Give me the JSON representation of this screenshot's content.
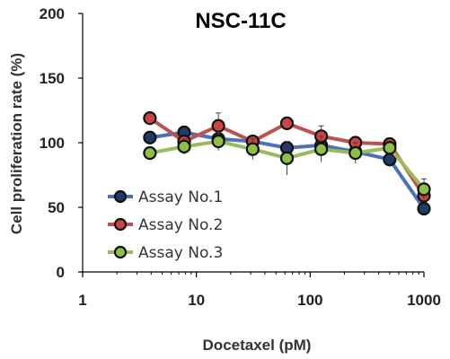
{
  "chart_data": {
    "type": "line",
    "title": "NSC-11C",
    "xlabel": "Docetaxel (pM)",
    "ylabel": "Cell proliferation rate (%)",
    "x_scale": "log",
    "xlim": [
      1,
      1000
    ],
    "ylim": [
      0,
      200
    ],
    "x_ticks": [
      "1",
      "10",
      "100",
      "1000"
    ],
    "y_ticks": [
      "0",
      "50",
      "100",
      "150",
      "200"
    ],
    "legend_position": "bottom-left",
    "grid": false,
    "x": [
      3.9,
      7.8,
      15.6,
      31.25,
      62.5,
      125,
      250,
      500,
      1000
    ],
    "series": [
      {
        "name": "Assay No.1",
        "color": "#4a72b8",
        "fill": "#1f3b66",
        "values": [
          104,
          108,
          103,
          101,
          96,
          98,
          93,
          87,
          49
        ],
        "errors": [
          0,
          3,
          3,
          2,
          4,
          2,
          2,
          2,
          2
        ]
      },
      {
        "name": "Assay No.2",
        "color": "#c0504d",
        "fill": "#cc4444",
        "values": [
          119,
          101,
          113,
          101,
          115,
          105,
          100,
          99,
          59
        ],
        "errors": [
          0,
          3,
          10,
          3,
          4,
          8,
          3,
          2,
          3
        ]
      },
      {
        "name": "Assay No.3",
        "color": "#9bbb59",
        "fill": "#8fbf4a",
        "values": [
          92,
          97,
          101,
          95,
          88,
          95,
          92,
          96,
          64
        ],
        "errors": [
          4,
          6,
          7,
          8,
          13,
          10,
          8,
          4,
          8
        ]
      }
    ]
  }
}
